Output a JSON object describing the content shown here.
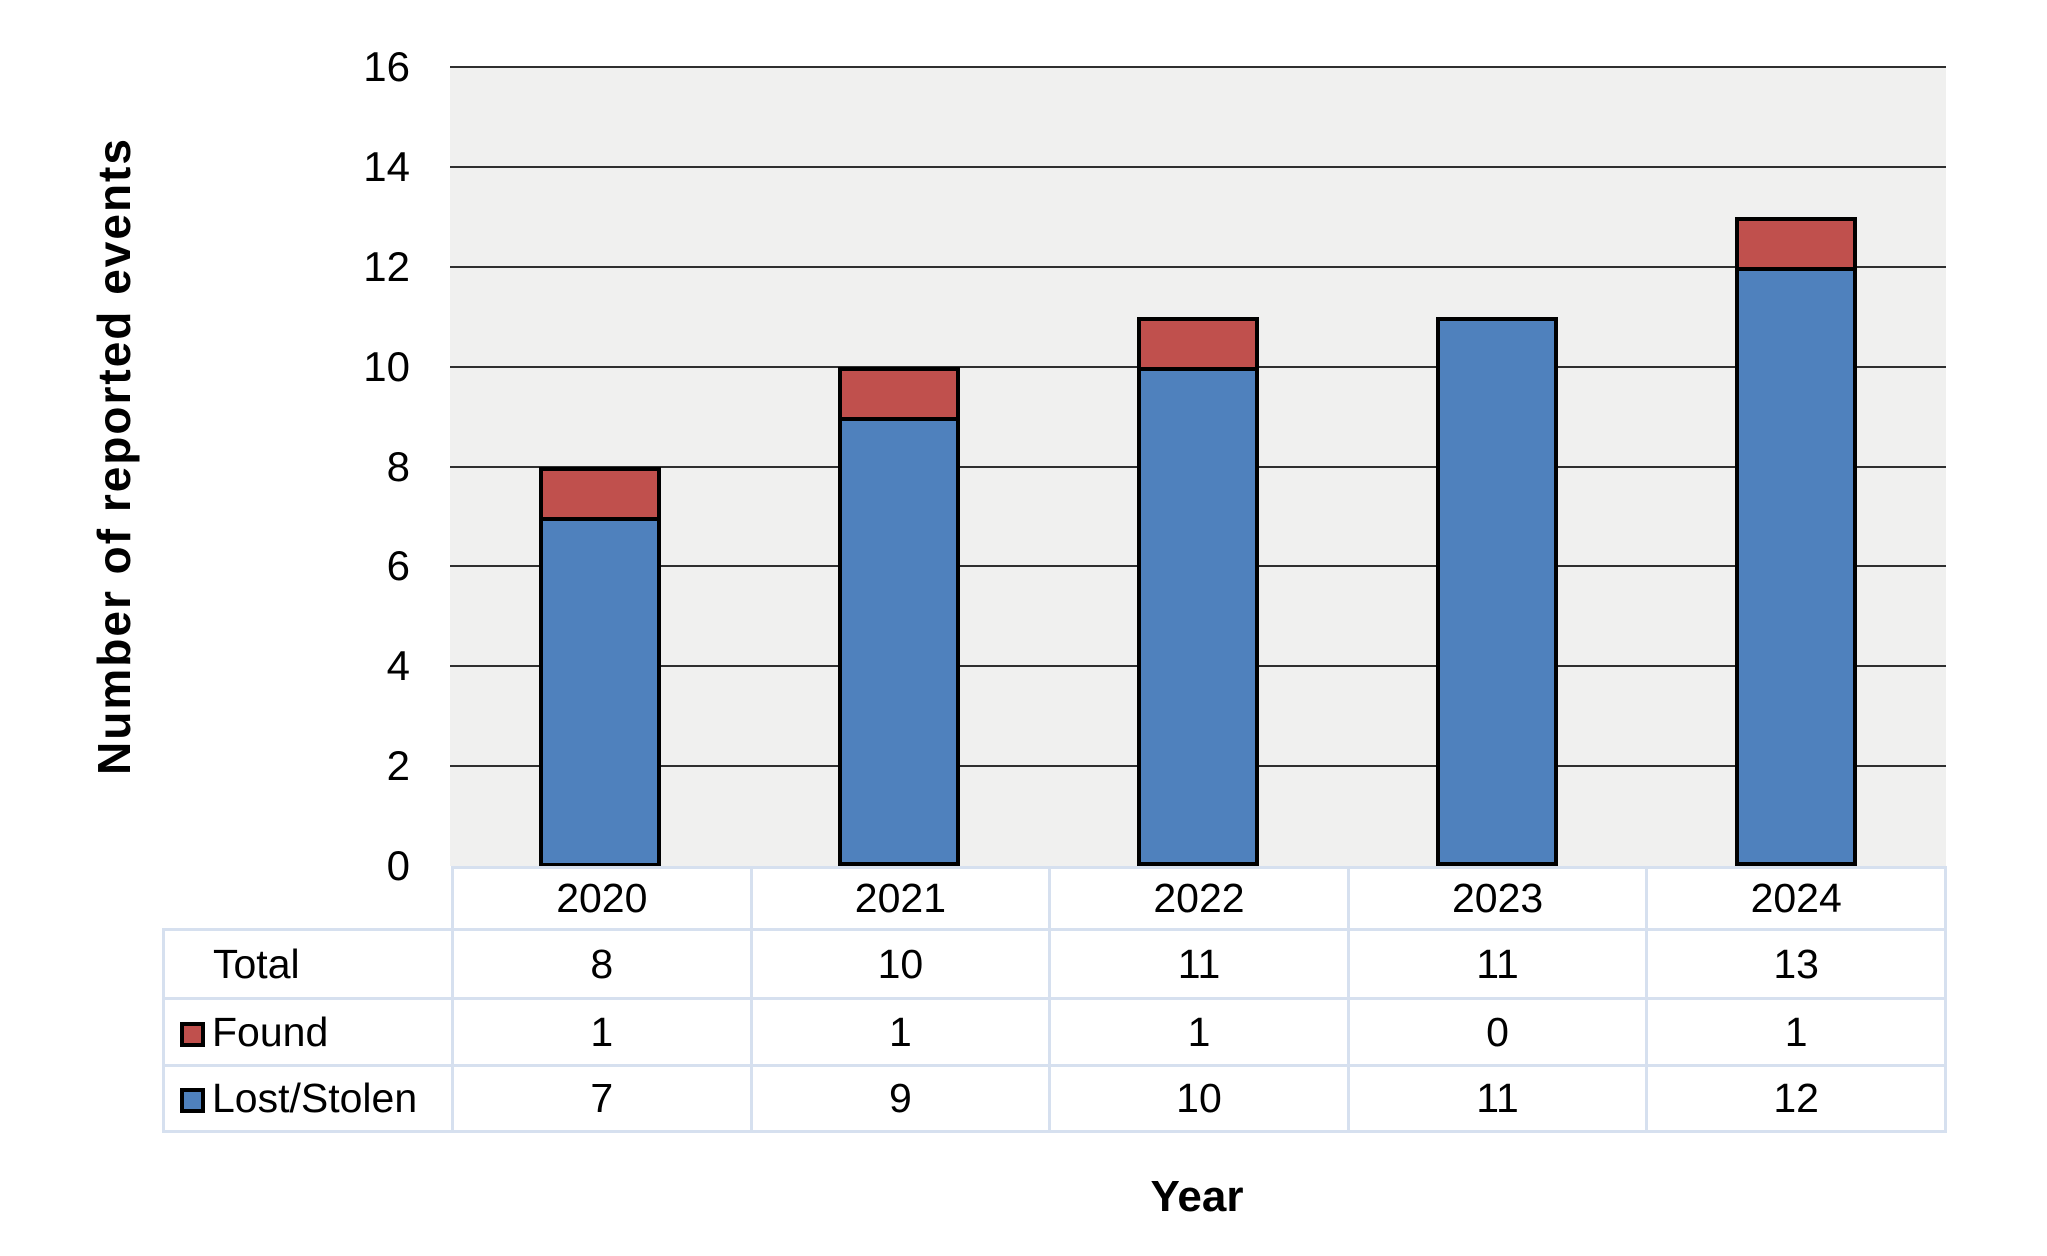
{
  "chart_data": {
    "type": "bar",
    "stacked": true,
    "title": "",
    "xlabel": "Year",
    "ylabel": "Number of reported events",
    "categories": [
      "2020",
      "2021",
      "2022",
      "2023",
      "2024"
    ],
    "series": [
      {
        "name": "Lost/Stolen",
        "color": "#4f81bd",
        "values": [
          7,
          9,
          10,
          11,
          12
        ]
      },
      {
        "name": "Found",
        "color": "#c0504d",
        "values": [
          1,
          1,
          1,
          0,
          1
        ]
      }
    ],
    "totals": [
      8,
      10,
      11,
      11,
      13
    ],
    "ylim": [
      0,
      16
    ],
    "yticks": [
      0,
      2,
      4,
      6,
      8,
      10,
      12,
      14,
      16
    ],
    "grid": "horizontal",
    "plot_background": "#f0f0ef",
    "gridline_color": "#2f2f2f",
    "bar_border_color": "#000000",
    "legend_position": "table-row-labels"
  },
  "table": {
    "border_color": "#d6e0ef",
    "header": [
      "2020",
      "2021",
      "2022",
      "2023",
      "2024"
    ],
    "rows": [
      {
        "label": "Total",
        "swatch": null,
        "values": [
          "8",
          "10",
          "11",
          "11",
          "13"
        ]
      },
      {
        "label": "Found",
        "swatch": "#c0504d",
        "values": [
          "1",
          "1",
          "1",
          "0",
          "1"
        ]
      },
      {
        "label": "Lost/Stolen",
        "swatch": "#4f81bd",
        "values": [
          "7",
          "9",
          "10",
          "11",
          "12"
        ]
      }
    ]
  }
}
